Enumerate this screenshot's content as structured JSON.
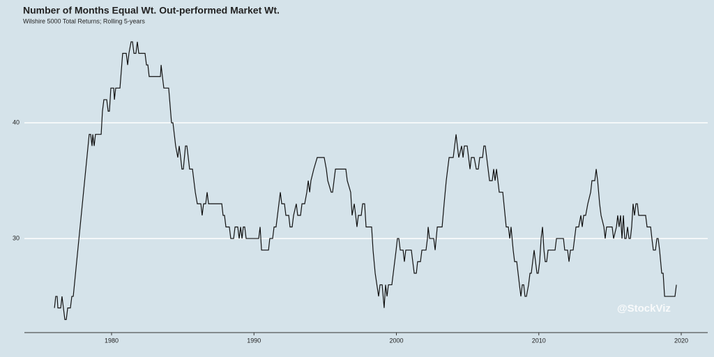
{
  "chart_data": {
    "type": "line",
    "title": "Number of Months Equal Wt. Out-performed Market Wt.",
    "subtitle": "Wilshire 5000 Total Returns; Rolling 5-years",
    "watermark": "@StockViz",
    "color": "#111111",
    "grid": true,
    "xlim": [
      1973.88,
      2021.86
    ],
    "ylim": [
      21.87,
      47.9
    ],
    "xticks": [
      1980,
      1990,
      2000,
      2010,
      2020
    ],
    "yticks": [
      30,
      40
    ],
    "x": [
      1975.99,
      1976.08,
      1976.18,
      1976.23,
      1976.43,
      1976.52,
      1976.62,
      1976.72,
      1976.82,
      1976.92,
      1977.11,
      1977.21,
      1977.31,
      1978.43,
      1978.53,
      1978.63,
      1978.68,
      1978.78,
      1978.87,
      1979.27,
      1979.36,
      1979.46,
      1979.66,
      1979.76,
      1979.85,
      1979.95,
      1980.15,
      1980.2,
      1980.29,
      1980.59,
      1980.78,
      1981.03,
      1981.13,
      1981.22,
      1981.37,
      1981.47,
      1981.57,
      1981.71,
      1981.81,
      1981.91,
      1982.35,
      1982.45,
      1982.55,
      1982.64,
      1983.43,
      1983.48,
      1983.57,
      1983.67,
      1984.01,
      1984.21,
      1984.31,
      1984.5,
      1984.65,
      1984.75,
      1984.85,
      1984.94,
      1985.04,
      1985.19,
      1985.29,
      1985.48,
      1985.68,
      1985.88,
      1986.02,
      1986.27,
      1986.36,
      1986.46,
      1986.61,
      1986.71,
      1986.81,
      1987.74,
      1987.83,
      1987.93,
      1988.03,
      1988.27,
      1988.37,
      1988.57,
      1988.67,
      1988.86,
      1988.96,
      1989.06,
      1989.16,
      1989.25,
      1989.35,
      1989.45,
      1990.33,
      1990.43,
      1990.53,
      1991.02,
      1991.11,
      1991.31,
      1991.41,
      1991.55,
      1991.65,
      1991.75,
      1991.85,
      1991.95,
      1992.14,
      1992.24,
      1992.44,
      1992.53,
      1992.68,
      1992.78,
      1992.97,
      1993.07,
      1993.27,
      1993.37,
      1993.56,
      1993.71,
      1993.81,
      1993.91,
      1994.0,
      1994.2,
      1994.44,
      1994.93,
      1995.08,
      1995.18,
      1995.42,
      1995.52,
      1995.62,
      1995.72,
      1996.45,
      1996.55,
      1996.79,
      1996.89,
      1997.04,
      1997.14,
      1997.23,
      1997.33,
      1997.53,
      1997.63,
      1997.77,
      1997.87,
      1998.26,
      1998.36,
      1998.51,
      1998.75,
      1998.85,
      1999.0,
      1999.14,
      1999.24,
      1999.34,
      1999.44,
      1999.68,
      1999.78,
      1999.98,
      2000.07,
      2000.17,
      2000.27,
      2000.47,
      2000.56,
      2000.66,
      2001.05,
      2001.15,
      2001.25,
      2001.4,
      2001.49,
      2001.69,
      2001.79,
      2002.08,
      2002.18,
      2002.23,
      2002.33,
      2002.62,
      2002.72,
      2002.87,
      2003.21,
      2003.35,
      2003.5,
      2003.7,
      2003.99,
      2004.09,
      2004.19,
      2004.28,
      2004.38,
      2004.58,
      2004.68,
      2004.77,
      2004.97,
      2005.07,
      2005.17,
      2005.26,
      2005.46,
      2005.61,
      2005.75,
      2005.85,
      2006.05,
      2006.14,
      2006.24,
      2006.34,
      2006.44,
      2006.54,
      2006.73,
      2006.83,
      2006.93,
      2007.03,
      2007.22,
      2007.47,
      2007.71,
      2007.86,
      2007.96,
      2008.05,
      2008.2,
      2008.3,
      2008.45,
      2008.64,
      2008.74,
      2008.84,
      2008.94,
      2009.03,
      2009.13,
      2009.28,
      2009.38,
      2009.47,
      2009.57,
      2009.67,
      2009.77,
      2009.87,
      2009.96,
      2010.06,
      2010.16,
      2010.26,
      2010.36,
      2010.45,
      2010.55,
      2010.65,
      2011.14,
      2011.24,
      2011.73,
      2011.82,
      2012.02,
      2012.12,
      2012.22,
      2012.41,
      2012.51,
      2012.61,
      2012.8,
      2012.95,
      2013.05,
      2013.15,
      2013.29,
      2013.44,
      2013.64,
      2013.73,
      2013.93,
      2014.03,
      2014.13,
      2014.27,
      2014.37,
      2014.57,
      2014.66,
      2014.76,
      2015.15,
      2015.25,
      2015.45,
      2015.54,
      2015.64,
      2015.74,
      2015.84,
      2015.94,
      2016.03,
      2016.13,
      2016.23,
      2016.33,
      2016.43,
      2016.52,
      2016.62,
      2016.72,
      2016.82,
      2016.92,
      2017.01,
      2017.5,
      2017.6,
      2017.85,
      2017.94,
      2018.04,
      2018.19,
      2018.29,
      2018.38,
      2018.48,
      2018.63,
      2018.73,
      2018.83,
      2019.56,
      2019.66
    ],
    "values": [
      24,
      25,
      25,
      24,
      24,
      25,
      24,
      23,
      23,
      24,
      24,
      25,
      25,
      39,
      39,
      38,
      39,
      38,
      39,
      39,
      41,
      42,
      42,
      41,
      41,
      43,
      43,
      42,
      43,
      43,
      46,
      46,
      45,
      46,
      47,
      47,
      46,
      46,
      47,
      46,
      46,
      45,
      45,
      44,
      44,
      45,
      44,
      43,
      43,
      40,
      40,
      38,
      37,
      38,
      37,
      36,
      36,
      38,
      38,
      36,
      36,
      34,
      33,
      33,
      32,
      33,
      33,
      34,
      33,
      33,
      32,
      32,
      31,
      31,
      30,
      30,
      31,
      31,
      30,
      31,
      30,
      31,
      31,
      30,
      30,
      31,
      29,
      29,
      30,
      30,
      31,
      31,
      32,
      33,
      34,
      33,
      33,
      32,
      32,
      31,
      31,
      32,
      33,
      32,
      32,
      33,
      33,
      34,
      35,
      34,
      35,
      36,
      37,
      37,
      36,
      35,
      34,
      34,
      35,
      36,
      36,
      35,
      34,
      32,
      33,
      32,
      31,
      32,
      32,
      33,
      33,
      31,
      31,
      29,
      27,
      25,
      26,
      26,
      24,
      26,
      25,
      26,
      26,
      27,
      29,
      30,
      30,
      29,
      29,
      28,
      29,
      29,
      28,
      27,
      27,
      28,
      28,
      29,
      29,
      30,
      31,
      30,
      30,
      29,
      31,
      31,
      33,
      35,
      37,
      37,
      38,
      39,
      38,
      37,
      38,
      37,
      38,
      38,
      37,
      36,
      37,
      37,
      36,
      36,
      37,
      37,
      38,
      38,
      37,
      36,
      35,
      35,
      36,
      35,
      36,
      34,
      34,
      31,
      31,
      30,
      31,
      29,
      28,
      28,
      26,
      25,
      26,
      26,
      25,
      25,
      26,
      27,
      27,
      28,
      29,
      28,
      27,
      27,
      28,
      30,
      31,
      29,
      28,
      28,
      29,
      29,
      30,
      30,
      29,
      29,
      28,
      29,
      29,
      30,
      31,
      31,
      32,
      31,
      32,
      32,
      33,
      34,
      35,
      35,
      36,
      35,
      33,
      32,
      31,
      30,
      31,
      31,
      30,
      31,
      32,
      31,
      32,
      30,
      32,
      30,
      30,
      31,
      30,
      30,
      31,
      33,
      32,
      33,
      33,
      32,
      32,
      31,
      31,
      30,
      29,
      29,
      30,
      30,
      29,
      27,
      27,
      25,
      25,
      26
    ]
  }
}
